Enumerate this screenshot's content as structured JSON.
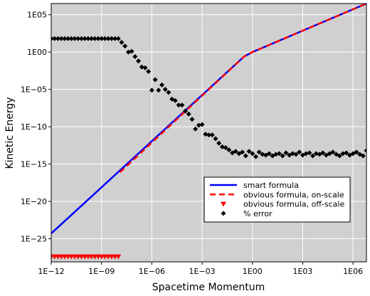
{
  "chart_data": {
    "type": "line",
    "title": "",
    "xlabel": "Spacetime Momentum",
    "ylabel": "Kinetic Energy",
    "x_scale": "log",
    "y_scale": "log",
    "xlim_log10": [
      -12,
      6.8
    ],
    "ylim_log10": [
      -28.1,
      6.5
    ],
    "x_ticks": [
      "1E−12",
      "1E−09",
      "1E−06",
      "1E−03",
      "1E00",
      "1E03",
      "1E06"
    ],
    "y_ticks": [
      "1E−25",
      "1E−20",
      "1E−15",
      "1E−10",
      "1E−05",
      "1E00",
      "1E05"
    ],
    "grid": true,
    "plot_background": "#d0d0d0",
    "legend_position": "lower-right",
    "series": [
      {
        "name": "smart formula",
        "kind": "line",
        "color": "#0000ff",
        "log10_x": [
          -12,
          -0.5,
          0,
          6.8
        ],
        "log10_y": [
          -24.3,
          -0.6,
          0,
          6.5
        ]
      },
      {
        "name": "obvious formula, on-scale",
        "kind": "dashed-line",
        "color": "#ff0000",
        "log10_x": [
          -7.9,
          -0.5,
          0,
          6.8
        ],
        "log10_y": [
          -16.1,
          -0.6,
          0,
          6.5
        ]
      },
      {
        "name": "obvious formula, off-scale",
        "kind": "triangle-markers",
        "color": "#ff0000",
        "log10_x": [
          -12.0,
          -11.8,
          -11.6,
          -11.4,
          -11.2,
          -11.0,
          -10.8,
          -10.6,
          -10.4,
          -10.2,
          -10.0,
          -9.8,
          -9.6,
          -9.4,
          -9.2,
          -9.0,
          -8.8,
          -8.6,
          -8.4,
          -8.2,
          -8.0
        ],
        "log10_y": [
          -27.4,
          -27.4,
          -27.4,
          -27.4,
          -27.4,
          -27.4,
          -27.4,
          -27.4,
          -27.4,
          -27.4,
          -27.4,
          -27.4,
          -27.4,
          -27.4,
          -27.4,
          -27.4,
          -27.4,
          -27.4,
          -27.4,
          -27.4,
          -27.4
        ]
      },
      {
        "name": "% error",
        "kind": "diamond-markers",
        "color": "#000000",
        "log10_x": [
          -12.0,
          -11.8,
          -11.6,
          -11.4,
          -11.2,
          -11.0,
          -10.8,
          -10.6,
          -10.4,
          -10.2,
          -10.0,
          -9.8,
          -9.6,
          -9.4,
          -9.2,
          -9.0,
          -8.8,
          -8.6,
          -8.4,
          -8.2,
          -8.0,
          -7.8,
          -7.6,
          -7.4,
          -7.2,
          -7.0,
          -6.8,
          -6.6,
          -6.4,
          -6.2,
          -6.0,
          -5.8,
          -5.6,
          -5.4,
          -5.2,
          -5.0,
          -4.8,
          -4.6,
          -4.4,
          -4.2,
          -4.0,
          -3.8,
          -3.6,
          -3.4,
          -3.2,
          -3.0,
          -2.8,
          -2.6,
          -2.4,
          -2.2,
          -2.0,
          -1.8,
          -1.6,
          -1.4,
          -1.2,
          -1.0,
          -0.8,
          -0.6,
          -0.4,
          -0.2,
          0.0,
          0.2,
          0.4,
          0.6,
          0.8,
          1.0,
          1.2,
          1.4,
          1.6,
          1.8,
          2.0,
          2.2,
          2.4,
          2.6,
          2.8,
          3.0,
          3.2,
          3.4,
          3.6,
          3.8,
          4.0,
          4.2,
          4.4,
          4.6,
          4.8,
          5.0,
          5.2,
          5.4,
          5.6,
          5.8,
          6.0,
          6.2,
          6.4,
          6.6,
          6.8
        ],
        "log10_y": [
          1.8,
          1.8,
          1.8,
          1.8,
          1.8,
          1.8,
          1.8,
          1.8,
          1.8,
          1.8,
          1.8,
          1.8,
          1.8,
          1.8,
          1.8,
          1.8,
          1.8,
          1.8,
          1.8,
          1.8,
          1.8,
          1.3,
          0.8,
          0.0,
          0.1,
          -0.6,
          -1.2,
          -2.0,
          -2.1,
          -2.6,
          -5.1,
          -3.7,
          -5.1,
          -4.4,
          -5.0,
          -5.4,
          -6.3,
          -6.5,
          -7.1,
          -7.1,
          -7.9,
          -8.3,
          -9.0,
          -10.3,
          -9.8,
          -9.7,
          -11.0,
          -11.1,
          -11.1,
          -11.6,
          -12.2,
          -12.7,
          -12.8,
          -13.1,
          -13.5,
          -13.3,
          -13.6,
          -13.4,
          -13.9,
          -13.3,
          -13.6,
          -14.0,
          -13.4,
          -13.7,
          -13.8,
          -13.6,
          -13.9,
          -13.7,
          -13.6,
          -13.9,
          -13.5,
          -13.8,
          -13.6,
          -13.7,
          -13.4,
          -13.8,
          -13.6,
          -13.5,
          -13.9,
          -13.6,
          -13.7,
          -13.5,
          -13.8,
          -13.6,
          -13.4,
          -13.7,
          -13.9,
          -13.6,
          -13.5,
          -13.8,
          -13.6,
          -13.4,
          -13.7,
          -13.9,
          -13.2
        ]
      }
    ]
  }
}
